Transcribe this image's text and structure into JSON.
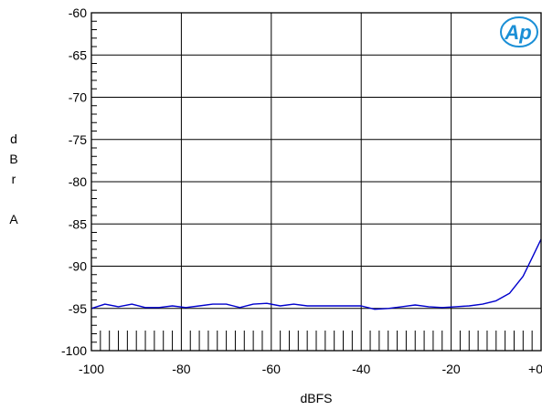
{
  "chart_data": {
    "type": "line",
    "xlabel": "dBFS",
    "ylabel_lines": [
      "d",
      "B",
      "r",
      "",
      "A"
    ],
    "xlim": [
      -100,
      0
    ],
    "ylim": [
      -100,
      -60
    ],
    "x_ticks": [
      -100,
      -80,
      -60,
      -40,
      -20,
      0
    ],
    "x_tick_labels": [
      "-100",
      "-80",
      "-60",
      "-40",
      "-20",
      "+0"
    ],
    "y_ticks": [
      -60,
      -65,
      -70,
      -75,
      -80,
      -85,
      -90,
      -95,
      -100
    ],
    "y_tick_labels": [
      "-60",
      "-65",
      "-70",
      "-75",
      "-80",
      "-85",
      "-90",
      "-95",
      "-100"
    ],
    "grid": true,
    "logo_text": "Ap",
    "colors": {
      "series": "#0000cc",
      "grid": "#000000",
      "logo": "#1a8fd6"
    },
    "series": [
      {
        "x": [
          -100,
          -97,
          -94,
          -91,
          -88,
          -85,
          -82,
          -79,
          -76,
          -73,
          -70,
          -67,
          -64,
          -61,
          -58,
          -55,
          -52,
          -49,
          -46,
          -43,
          -40,
          -37,
          -34,
          -31,
          -28,
          -25,
          -22,
          -19,
          -16,
          -13,
          -10,
          -7,
          -4,
          -2,
          0
        ],
        "y": [
          -95.0,
          -94.5,
          -94.8,
          -94.5,
          -94.9,
          -94.9,
          -94.7,
          -94.9,
          -94.7,
          -94.5,
          -94.5,
          -94.9,
          -94.5,
          -94.4,
          -94.7,
          -94.5,
          -94.7,
          -94.7,
          -94.7,
          -94.7,
          -94.7,
          -95.1,
          -95.0,
          -94.8,
          -94.6,
          -94.8,
          -94.9,
          -94.8,
          -94.7,
          -94.5,
          -94.1,
          -93.2,
          -91.2,
          -89.0,
          -86.8
        ]
      }
    ]
  }
}
